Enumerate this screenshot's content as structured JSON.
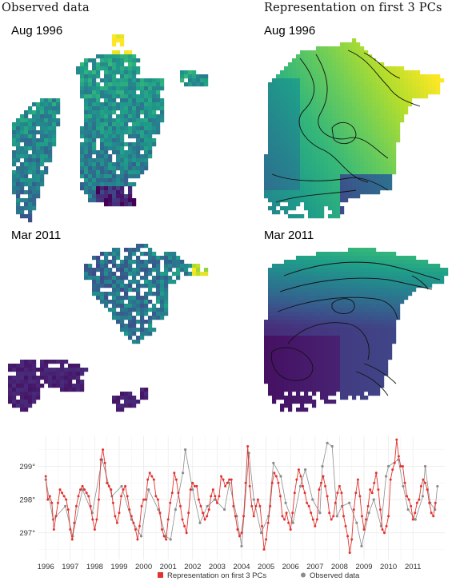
{
  "columns": {
    "left_title": "Observed data",
    "right_title": "Representation on first 3 PCs"
  },
  "maps": [
    {
      "label": "Aug 1996"
    },
    {
      "label": "Aug 1996"
    },
    {
      "label": "Mar 2011"
    },
    {
      "label": "Mar 2011"
    }
  ],
  "colors": {
    "pc_series": "#e2322e",
    "observed_series": "#8c8c8c",
    "viridis_dark": "#440154",
    "viridis_mid": "#21918c",
    "viridis_light": "#fde725"
  },
  "chart_data": {
    "type": "line",
    "xlabel": "",
    "ylabel": "",
    "xlim": [
      1995.7,
      2012.3
    ],
    "ylim": [
      296.2,
      299.9
    ],
    "x_ticks": [
      1996,
      1997,
      1998,
      1999,
      2000,
      2001,
      2002,
      2003,
      2004,
      2005,
      2006,
      2007,
      2008,
      2009,
      2010,
      2011
    ],
    "y_ticks": [
      297,
      298,
      299
    ],
    "y_tick_labels": [
      "297°",
      "298°",
      "299°"
    ],
    "grid": true,
    "legend_position": "bottom",
    "legend": [
      "Representation on first 3 PCs",
      "Observed data"
    ],
    "series": [
      {
        "name": "Representation on first 3 PCs",
        "start_year": 1996,
        "values_monthly": [
          298.7,
          298.0,
          298.1,
          297.9,
          297.1,
          297.5,
          297.9,
          298.3,
          298.2,
          298.1,
          298.0,
          297.7,
          297.1,
          296.8,
          297.3,
          297.8,
          298.1,
          298.3,
          298.4,
          298.3,
          298.2,
          298.1,
          297.8,
          297.4,
          297.1,
          297.4,
          298.0,
          299.2,
          299.5,
          299.1,
          298.5,
          298.4,
          298.3,
          297.9,
          297.5,
          297.3,
          297.6,
          298.1,
          298.3,
          298.4,
          298.1,
          297.7,
          297.5,
          297.3,
          297.1,
          296.8,
          297.2,
          297.8,
          298.0,
          298.0,
          298.6,
          298.8,
          298.7,
          298.6,
          298.1,
          298.0,
          297.6,
          297.1,
          296.9,
          296.8,
          297.4,
          297.9,
          298.2,
          298.8,
          298.6,
          298.2,
          297.8,
          297.4,
          297.2,
          297.0,
          297.6,
          298.3,
          298.5,
          298.4,
          298.4,
          298.0,
          297.8,
          297.6,
          297.4,
          297.5,
          297.7,
          298.1,
          298.3,
          298.1,
          297.9,
          298.1,
          298.7,
          298.6,
          298.4,
          298.5,
          298.6,
          298.6,
          297.8,
          297.5,
          297.1,
          296.9,
          297.0,
          297.5,
          298.5,
          299.6,
          298.4,
          297.8,
          297.5,
          297.8,
          298.0,
          297.8,
          297.2,
          296.5,
          296.8,
          297.3,
          297.8,
          298.5,
          298.8,
          298.7,
          298.5,
          298.1,
          297.5,
          297.4,
          297.6,
          297.3,
          297.1,
          297.6,
          298.2,
          298.6,
          298.9,
          298.7,
          298.4,
          298.2,
          297.9,
          297.8,
          297.6,
          297.4,
          297.2,
          297.4,
          298.3,
          298.5,
          298.7,
          298.4,
          298.1,
          297.6,
          297.4,
          297.5,
          297.9,
          298.2,
          298.4,
          298.2,
          297.5,
          297.2,
          296.9,
          296.4,
          296.8,
          297.7,
          298.2,
          298.6,
          298.1,
          297.5,
          297.1,
          297.4,
          297.8,
          298.3,
          298.2,
          298.5,
          298.8,
          298.3,
          297.7,
          297.1,
          297.0,
          297.2,
          297.5,
          298.6,
          298.9,
          299.1,
          299.8,
          299.3,
          299.0,
          299.0,
          298.5,
          298.1,
          298.0,
          297.8,
          297.4,
          297.6,
          297.9,
          298.0,
          298.4,
          298.6,
          298.5,
          298.3,
          297.9,
          297.6,
          297.5,
          297.9
        ]
      },
      {
        "name": "Observed data",
        "points": [
          [
            1996.0,
            298.6
          ],
          [
            1996.3,
            297.4
          ],
          [
            1996.8,
            297.8
          ],
          [
            1997.1,
            296.9
          ],
          [
            1997.5,
            298.3
          ],
          [
            1997.9,
            297.6
          ],
          [
            1998.3,
            299.2
          ],
          [
            1998.7,
            298.1
          ],
          [
            1999.1,
            298.4
          ],
          [
            1999.5,
            297.4
          ],
          [
            1999.9,
            296.9
          ],
          [
            2000.2,
            298.3
          ],
          [
            2000.6,
            297.7
          ],
          [
            2000.9,
            296.9
          ],
          [
            2001.1,
            296.8
          ],
          [
            2001.3,
            297.7
          ],
          [
            2001.6,
            298.8
          ],
          [
            2001.7,
            299.5
          ],
          [
            2002.0,
            298.3
          ],
          [
            2002.3,
            297.3
          ],
          [
            2002.6,
            297.8
          ],
          [
            2002.9,
            298.0
          ],
          [
            2003.3,
            297.7
          ],
          [
            2003.5,
            298.5
          ],
          [
            2003.8,
            297.5
          ],
          [
            2004.0,
            296.6
          ],
          [
            2004.3,
            299.4
          ],
          [
            2004.5,
            298.0
          ],
          [
            2004.8,
            297.0
          ],
          [
            2005.1,
            297.5
          ],
          [
            2005.3,
            299.1
          ],
          [
            2005.6,
            298.7
          ],
          [
            2005.8,
            297.9
          ],
          [
            2006.1,
            297.3
          ],
          [
            2006.4,
            298.4
          ],
          [
            2006.6,
            298.9
          ],
          [
            2006.9,
            298.0
          ],
          [
            2007.2,
            297.6
          ],
          [
            2007.3,
            299.0
          ],
          [
            2007.5,
            299.7
          ],
          [
            2007.7,
            299.6
          ],
          [
            2007.9,
            297.5
          ],
          [
            2008.1,
            297.8
          ],
          [
            2008.4,
            297.9
          ],
          [
            2008.7,
            297.3
          ],
          [
            2008.9,
            296.6
          ],
          [
            2009.2,
            297.6
          ],
          [
            2009.4,
            298.0
          ],
          [
            2009.7,
            297.2
          ],
          [
            2009.9,
            298.7
          ],
          [
            2010.0,
            299.0
          ],
          [
            2010.4,
            299.2
          ],
          [
            2010.6,
            298.4
          ],
          [
            2010.8,
            297.7
          ],
          [
            2011.1,
            297.4
          ],
          [
            2011.4,
            298.1
          ],
          [
            2011.5,
            299.0
          ],
          [
            2011.7,
            297.9
          ],
          [
            2011.9,
            297.7
          ],
          [
            2012.0,
            298.4
          ]
        ]
      }
    ]
  }
}
